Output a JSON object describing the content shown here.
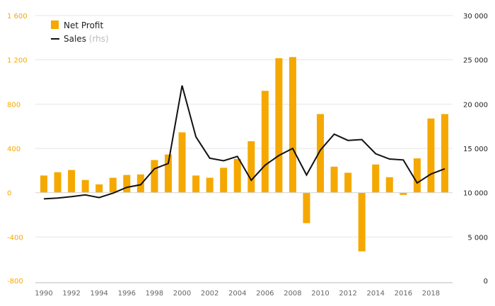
{
  "chart_data": {
    "type": "bar",
    "title": "",
    "xlabel": "",
    "ylabel": "",
    "x": [
      1990,
      1991,
      1992,
      1993,
      1994,
      1995,
      1996,
      1997,
      1998,
      1999,
      2000,
      2001,
      2002,
      2003,
      2004,
      2005,
      2006,
      2007,
      2008,
      2009,
      2010,
      2011,
      2012,
      2013,
      2014,
      2015,
      2016,
      2017,
      2018,
      2019
    ],
    "x_tick_labels": [
      "1990",
      "1992",
      "1994",
      "1996",
      "1998",
      "2000",
      "2002",
      "2004",
      "2006",
      "2008",
      "2010",
      "2012",
      "2014",
      "2016",
      "2018"
    ],
    "y_left": {
      "min": -800,
      "max": 1600,
      "ticks": [
        -800,
        -400,
        0,
        400,
        800,
        1200,
        1600
      ],
      "tick_labels": [
        "-800",
        "-400",
        "0",
        "400",
        "800",
        "1 200",
        "1 600"
      ]
    },
    "y_right": {
      "min": 0,
      "max": 30000,
      "ticks": [
        0,
        5000,
        10000,
        15000,
        20000,
        25000,
        30000
      ],
      "tick_labels": [
        "0",
        "5 000",
        "10 000",
        "15 000",
        "20 000",
        "25 000",
        "30 000"
      ]
    },
    "grid": true,
    "legend_position": "top-left",
    "series": [
      {
        "name": "Net Profit",
        "type": "bar",
        "axis": "left",
        "color": "#f5a800",
        "values": [
          155,
          185,
          205,
          115,
          75,
          135,
          160,
          165,
          295,
          345,
          545,
          155,
          135,
          225,
          305,
          465,
          920,
          1215,
          1225,
          -275,
          710,
          235,
          180,
          -530,
          255,
          140,
          -20,
          310,
          670,
          710
        ]
      },
      {
        "name": "Sales",
        "name_suffix": "(rhs)",
        "type": "line",
        "axis": "right",
        "color": "#111111",
        "values": [
          9300,
          9400,
          9550,
          9750,
          9450,
          9950,
          10600,
          10900,
          12700,
          13300,
          22100,
          16300,
          13900,
          13600,
          14100,
          11400,
          13100,
          14200,
          15000,
          12000,
          14800,
          16600,
          15900,
          16000,
          14400,
          13800,
          13700,
          11100,
          12100,
          12700
        ]
      }
    ]
  }
}
